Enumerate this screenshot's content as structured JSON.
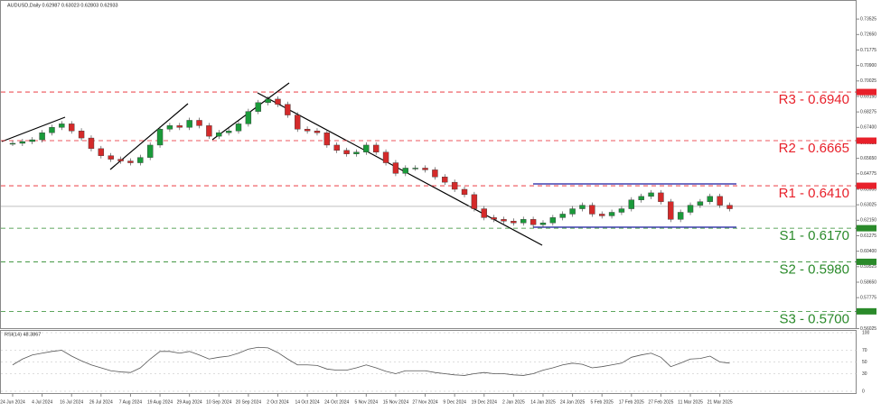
{
  "chart_data": {
    "type": "candle-close",
    "title": "AUDUSD,Daily  0.62987 0.63023 0.62803 0.62933",
    "categories": [
      "24 Jun 2024",
      null,
      null,
      "4 Jul 2024",
      null,
      null,
      "16 Jul 2024",
      null,
      null,
      "26 Jul 2024",
      null,
      null,
      "7 Aug 2024",
      null,
      null,
      "19 Aug 2024",
      null,
      null,
      "29 Aug 2024",
      null,
      null,
      "10 Sep 2024",
      null,
      null,
      "20 Sep 2024",
      null,
      null,
      "2 Oct 2024",
      null,
      null,
      "14 Oct 2024",
      null,
      null,
      "24 Oct 2024",
      null,
      null,
      "5 Nov 2024",
      null,
      null,
      "15 Nov 2024",
      null,
      null,
      "27 Nov 2024",
      null,
      null,
      "9 Dec 2024",
      null,
      null,
      "19 Dec 2024",
      null,
      null,
      "2 Jan 2025",
      null,
      null,
      "14 Jan 2025",
      null,
      null,
      "24 Jan 2025",
      null,
      null,
      "5 Feb 2025",
      null,
      null,
      "17 Feb 2025",
      null,
      null,
      "27 Feb 2025",
      null,
      null,
      "11 Mar 2025",
      null,
      null,
      "21 Mar 2025",
      null
    ],
    "values": [
      0.665,
      0.666,
      0.667,
      0.671,
      0.674,
      0.676,
      0.672,
      0.668,
      0.662,
      0.658,
      0.656,
      0.655,
      0.654,
      0.657,
      0.664,
      0.673,
      0.675,
      0.674,
      0.678,
      0.675,
      0.669,
      0.671,
      0.672,
      0.676,
      0.683,
      0.688,
      0.69,
      0.687,
      0.681,
      0.673,
      0.672,
      0.671,
      0.664,
      0.661,
      0.659,
      0.66,
      0.664,
      0.66,
      0.654,
      0.648,
      0.651,
      0.651,
      0.65,
      0.646,
      0.643,
      0.639,
      0.636,
      0.628,
      0.623,
      0.622,
      0.621,
      0.62,
      0.622,
      0.619,
      0.62,
      0.623,
      0.625,
      0.628,
      0.63,
      0.625,
      0.624,
      0.626,
      0.628,
      0.633,
      0.635,
      0.637,
      0.632,
      0.622,
      0.626,
      0.63,
      0.632,
      0.635,
      0.63,
      0.628
    ],
    "up_color": "#1a9a3a",
    "down_color": "#d42a2a",
    "ylim": [
      0.5605,
      0.745
    ],
    "yticks": [
      {
        "value": 0.56025,
        "label": "0.56025"
      },
      {
        "value": 0.569,
        "label": "0.56900"
      },
      {
        "value": 0.57775,
        "label": "0.57775"
      },
      {
        "value": 0.5865,
        "label": "0.58650"
      },
      {
        "value": 0.59525,
        "label": "0.59525"
      },
      {
        "value": 0.604,
        "label": "0.60400"
      },
      {
        "value": 0.61275,
        "label": "0.61275"
      },
      {
        "value": 0.6215,
        "label": "0.62150"
      },
      {
        "value": 0.63025,
        "label": "0.63025"
      },
      {
        "value": 0.639,
        "label": "0.63900"
      },
      {
        "value": 0.64775,
        "label": "0.64775"
      },
      {
        "value": 0.6565,
        "label": "0.65650"
      },
      {
        "value": 0.66525,
        "label": "0.66525"
      },
      {
        "value": 0.674,
        "label": "0.67400"
      },
      {
        "value": 0.68275,
        "label": "0.68275"
      },
      {
        "value": 0.6915,
        "label": "0.69150"
      },
      {
        "value": 0.70025,
        "label": "0.70025"
      },
      {
        "value": 0.709,
        "label": "0.70900"
      },
      {
        "value": 0.71775,
        "label": "0.71775"
      },
      {
        "value": 0.7265,
        "label": "0.72650"
      },
      {
        "value": 0.73525,
        "label": "0.73525"
      }
    ],
    "current_price": 0.62933,
    "levels": [
      {
        "value": 0.694,
        "label": "R3 - 0.6940",
        "color": "#e8202a"
      },
      {
        "value": 0.6665,
        "label": "R2 - 0.6665",
        "color": "#e8202a"
      },
      {
        "value": 0.641,
        "label": "R1 - 0.6410",
        "color": "#e8202a"
      },
      {
        "value": 0.617,
        "label": "S1 - 0.6170",
        "color": "#2a8a2a"
      },
      {
        "value": 0.598,
        "label": "S2 - 0.5980",
        "color": "#2a8a2a"
      },
      {
        "value": 0.57,
        "label": "S3 - 0.5700",
        "color": "#2a8a2a"
      }
    ],
    "rsi": {
      "title": "RSI(14) 48.3867",
      "ylim": [
        0,
        100
      ],
      "yticks": [
        100,
        70,
        50,
        30,
        0
      ],
      "values": [
        45,
        55,
        62,
        65,
        68,
        70,
        60,
        52,
        45,
        40,
        35,
        33,
        32,
        40,
        55,
        68,
        68,
        65,
        68,
        62,
        55,
        58,
        60,
        65,
        72,
        75,
        74,
        66,
        55,
        45,
        45,
        44,
        38,
        36,
        36,
        40,
        45,
        40,
        34,
        30,
        35,
        35,
        35,
        32,
        30,
        28,
        27,
        30,
        32,
        30,
        30,
        28,
        27,
        30,
        36,
        40,
        45,
        48,
        46,
        40,
        42,
        45,
        48,
        58,
        62,
        65,
        58,
        42,
        48,
        55,
        56,
        60,
        50,
        48
      ]
    }
  }
}
